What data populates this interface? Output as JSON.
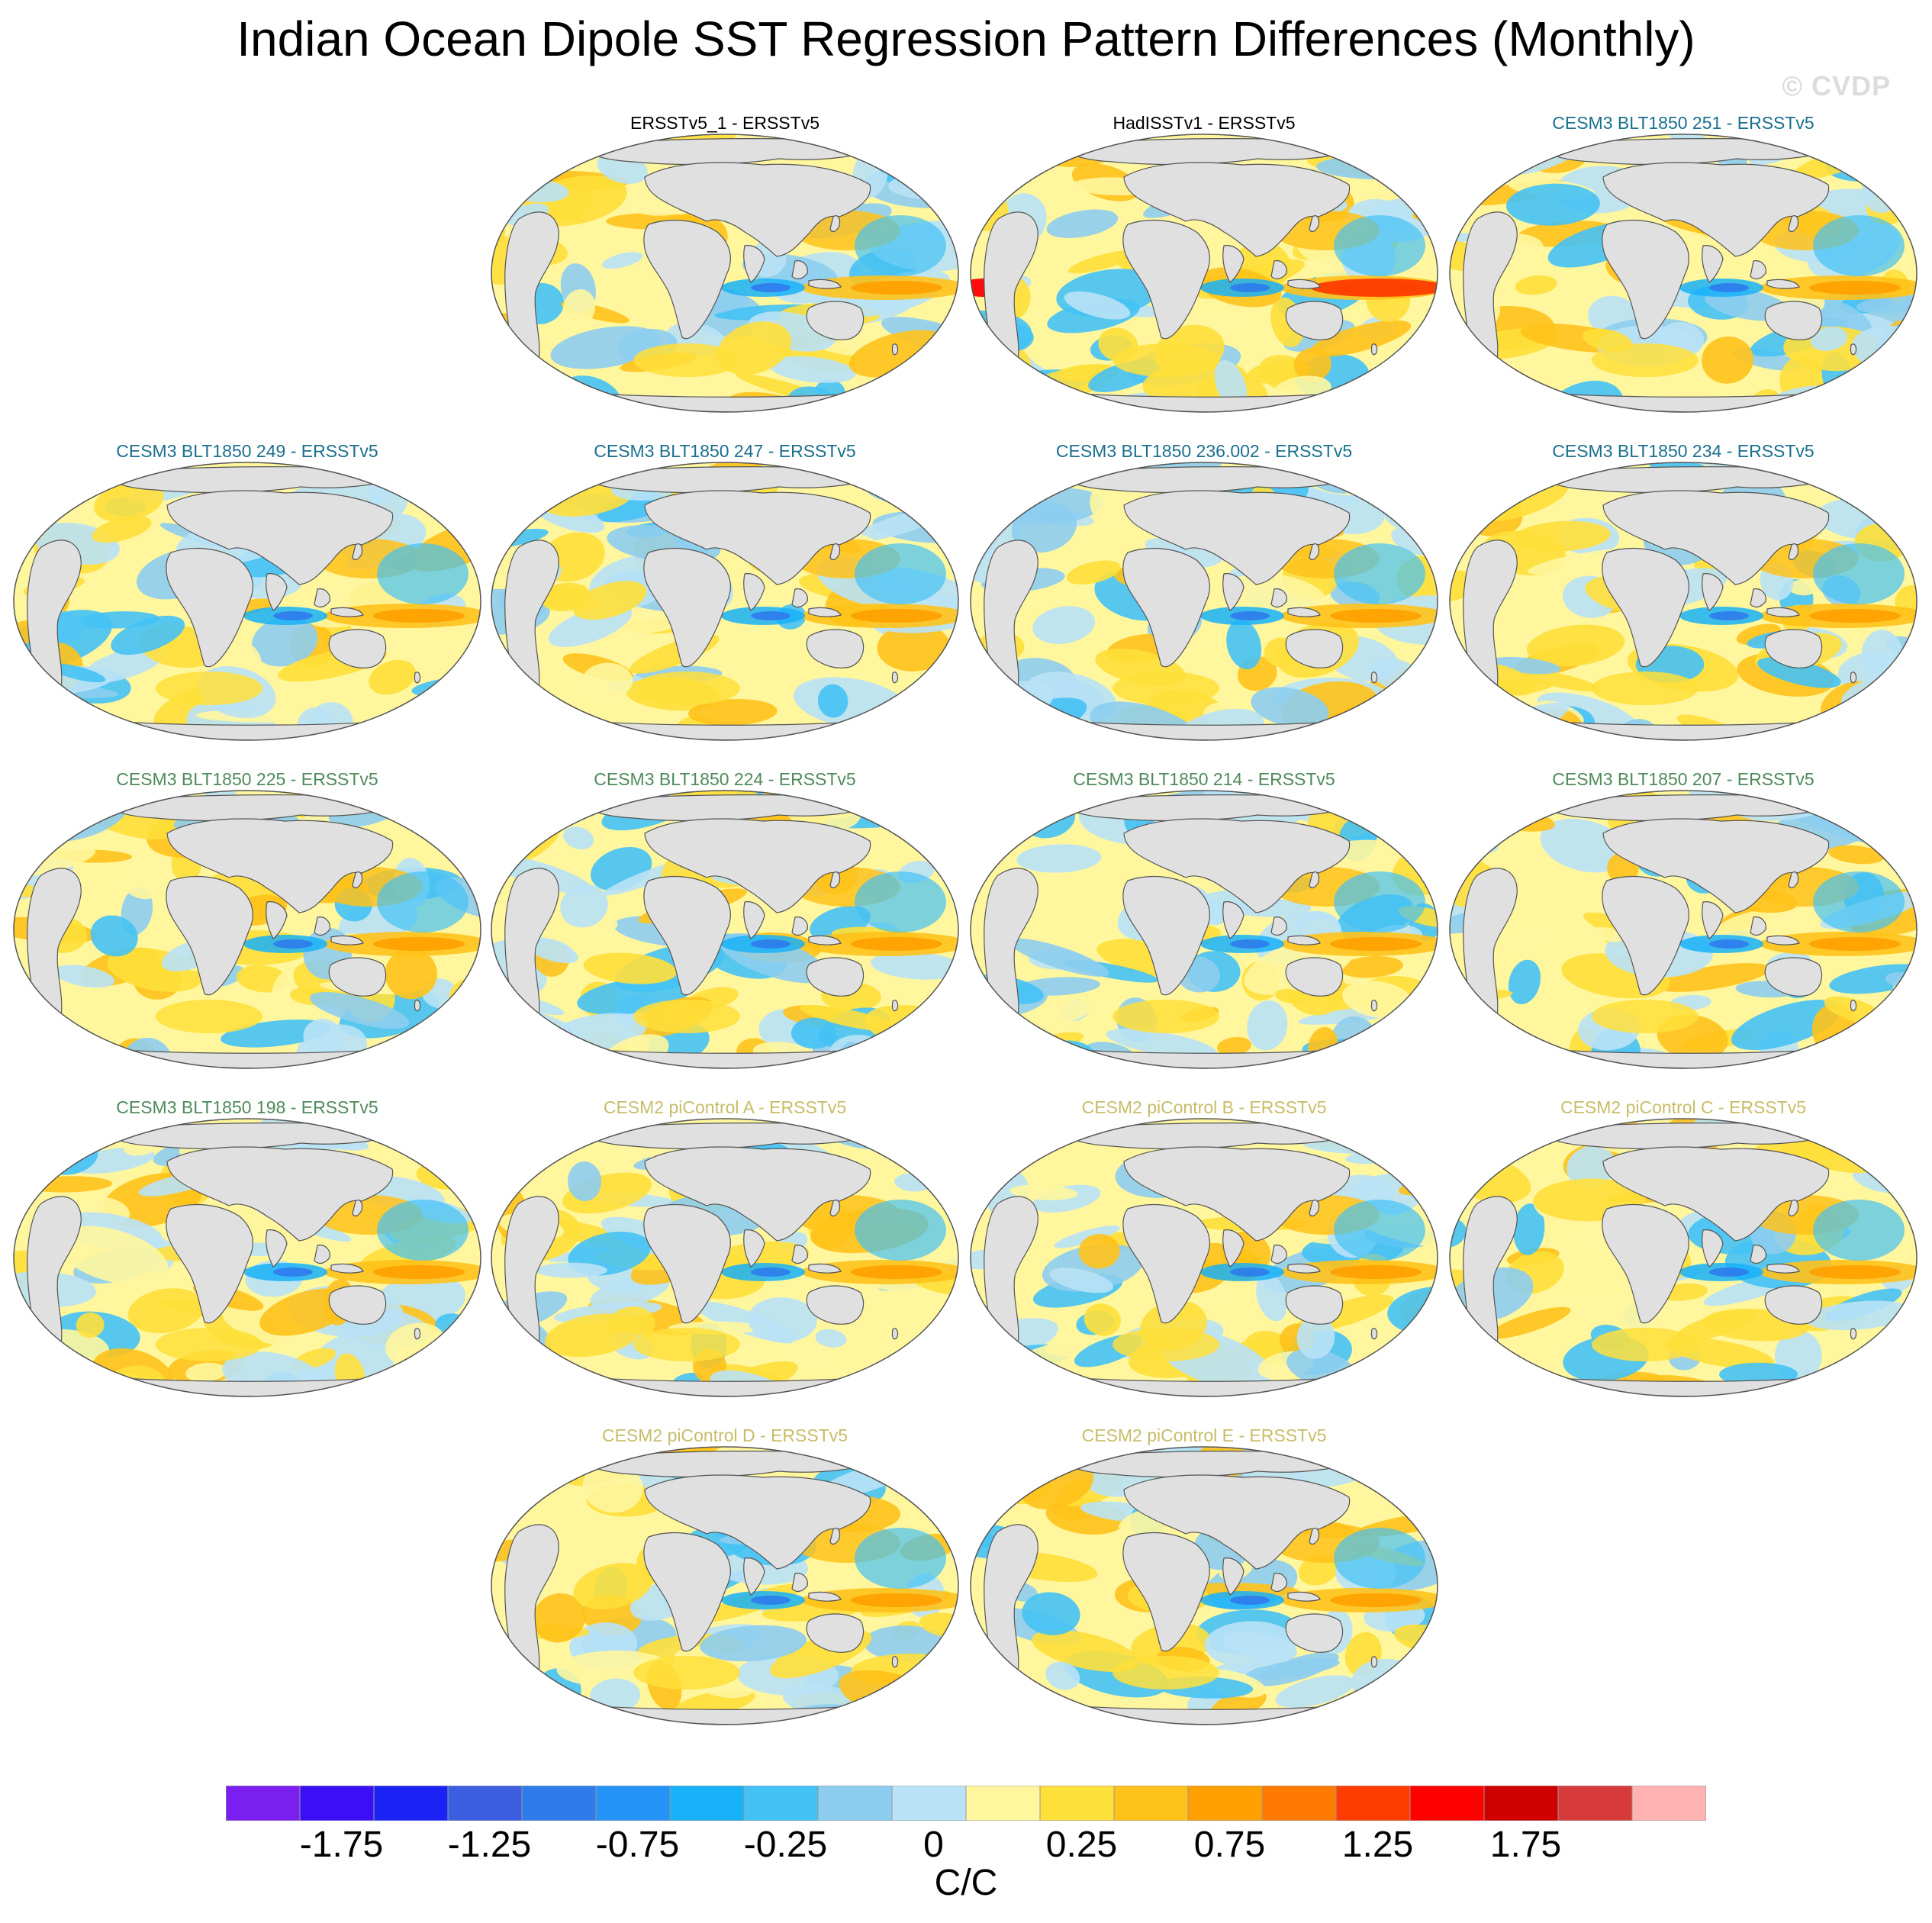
{
  "title": "Indian Ocean Dipole SST Regression Pattern Differences (Monthly)",
  "watermark": "© CVDP",
  "units": "C/C",
  "colors": {
    "land": "#e0e0e0",
    "coast": "#555555",
    "title_obs": "#000000",
    "title_cesm3_a": "#1a6f8f",
    "title_cesm3_b": "#4f8a5b",
    "title_cesm2": "#c8bc68"
  },
  "panels": [
    {
      "title": "ERSSTv5_1 - ERSSTv5",
      "group": "obs",
      "col": 1,
      "row": 0
    },
    {
      "title": "HadISSTv1 - ERSSTv5",
      "group": "obs",
      "col": 2,
      "row": 0
    },
    {
      "title": "CESM3 BLT1850 251 - ERSSTv5",
      "group": "cesm3_a",
      "col": 3,
      "row": 0
    },
    {
      "title": "CESM3 BLT1850 249 - ERSSTv5",
      "group": "cesm3_a",
      "col": 0,
      "row": 1
    },
    {
      "title": "CESM3 BLT1850 247 - ERSSTv5",
      "group": "cesm3_a",
      "col": 1,
      "row": 1
    },
    {
      "title": "CESM3 BLT1850 236.002 - ERSSTv5",
      "group": "cesm3_a",
      "col": 2,
      "row": 1
    },
    {
      "title": "CESM3 BLT1850 234 - ERSSTv5",
      "group": "cesm3_a",
      "col": 3,
      "row": 1
    },
    {
      "title": "CESM3 BLT1850 225 - ERSSTv5",
      "group": "cesm3_b",
      "col": 0,
      "row": 2
    },
    {
      "title": "CESM3 BLT1850 224 - ERSSTv5",
      "group": "cesm3_b",
      "col": 1,
      "row": 2
    },
    {
      "title": "CESM3 BLT1850 214 - ERSSTv5",
      "group": "cesm3_b",
      "col": 2,
      "row": 2
    },
    {
      "title": "CESM3 BLT1850 207 - ERSSTv5",
      "group": "cesm3_b",
      "col": 3,
      "row": 2
    },
    {
      "title": "CESM3 BLT1850 198 - ERSSTv5",
      "group": "cesm3_b",
      "col": 0,
      "row": 3
    },
    {
      "title": "CESM2 piControl A - ERSSTv5",
      "group": "cesm2",
      "col": 1,
      "row": 3
    },
    {
      "title": "CESM2 piControl B - ERSSTv5",
      "group": "cesm2",
      "col": 2,
      "row": 3
    },
    {
      "title": "CESM2 piControl C - ERSSTv5",
      "group": "cesm2",
      "col": 3,
      "row": 3
    },
    {
      "title": "CESM2 piControl D - ERSSTv5",
      "group": "cesm2",
      "col": 1,
      "row": 4
    },
    {
      "title": "CESM2 piControl E - ERSSTv5",
      "group": "cesm2",
      "col": 2,
      "row": 4
    }
  ],
  "colorbar": {
    "colors": [
      "#7a1ff0",
      "#3a0ff5",
      "#1a22f5",
      "#3b5fe0",
      "#2f7bec",
      "#2493f8",
      "#18b2f8",
      "#45c2f5",
      "#8dcdef",
      "#b9e2f6",
      "#fff69e",
      "#ffdf3a",
      "#ffc21a",
      "#ffa000",
      "#ff7a00",
      "#ff3c00",
      "#ff0000",
      "#d00000",
      "#d63a3a",
      "#ffb2b2"
    ],
    "tick_labels": [
      "-1.75",
      "-1.25",
      "-0.75",
      "-0.25",
      "0",
      "0.25",
      "0.75",
      "1.25",
      "1.75"
    ],
    "tick_boundaries": [
      2,
      4,
      6,
      8,
      10,
      12,
      14,
      16,
      18
    ]
  }
}
